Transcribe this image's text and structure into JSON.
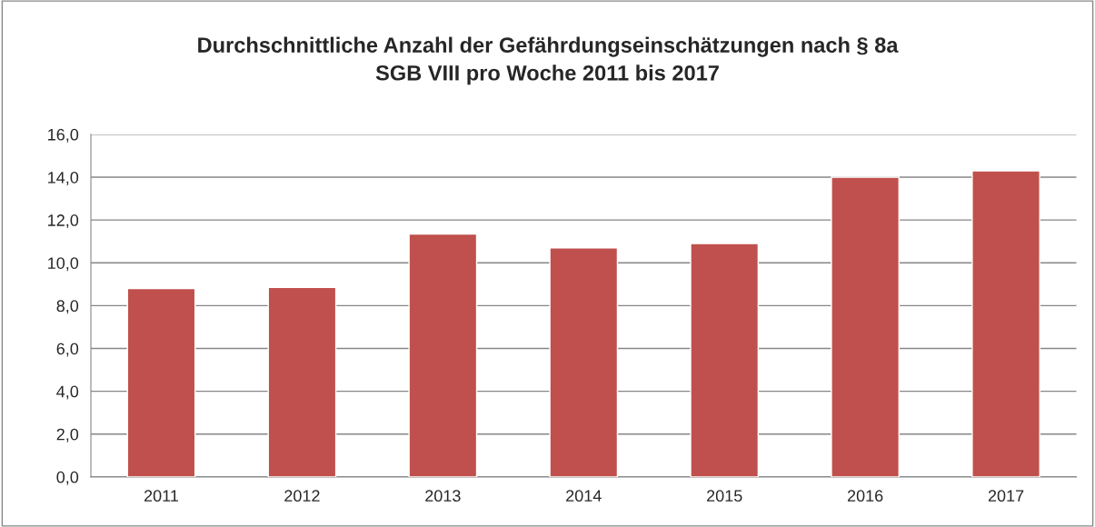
{
  "chart_data": {
    "type": "bar",
    "title": "Durchschnittliche Anzahl der Gefährdungseinschätzungen nach § 8a\nSGB VIII pro Woche 2011 bis 2017",
    "categories": [
      "2011",
      "2012",
      "2013",
      "2014",
      "2015",
      "2016",
      "2017"
    ],
    "values": [
      8.8,
      8.85,
      11.35,
      10.7,
      10.9,
      14.0,
      14.3
    ],
    "color": "#c0504d",
    "ylim": [
      0,
      16
    ],
    "yticks": [
      {
        "value": 0,
        "label": "0,0"
      },
      {
        "value": 2,
        "label": "2,0"
      },
      {
        "value": 4,
        "label": "4,0"
      },
      {
        "value": 6,
        "label": "6,0"
      },
      {
        "value": 8,
        "label": "8,0"
      },
      {
        "value": 10,
        "label": "10,0"
      },
      {
        "value": 12,
        "label": "12,0"
      },
      {
        "value": 14,
        "label": "14,0"
      },
      {
        "value": 16,
        "label": "16,0"
      }
    ],
    "grid": "y"
  }
}
